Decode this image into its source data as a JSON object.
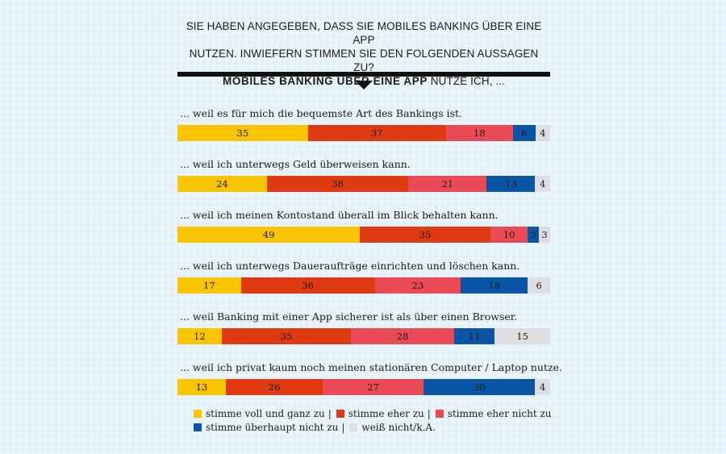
{
  "title": {
    "line1": "SIE HABEN ANGEGEBEN, DASS SIE MOBILES BANKING ÜBER EINE APP",
    "line2": "NUTZEN. INWIEFERN STIMMEN SIE DEN FOLGENDEN AUSSAGEN ZU?",
    "line3_bold": "MOBILES BANKING ÜBER EINE APP",
    "line3_rest": " NUTZE ICH, ..."
  },
  "chart_data": {
    "type": "bar",
    "orientation": "horizontal",
    "stacked": true,
    "categories": [
      "... weil es für mich die bequemste Art des Bankings ist.",
      "... weil ich unterwegs Geld überweisen kann.",
      "... weil ich meinen Kontostand überall im Blick behalten kann.",
      "... weil ich unterwegs Daueraufträge einrichten und löschen kann.",
      "... weil Banking mit einer App sicherer ist als über einen Browser.",
      "... weil ich privat kaum noch meinen stationären Computer / Laptop nutze."
    ],
    "series": [
      {
        "name": "stimme voll und ganz zu",
        "color": "#f9c400",
        "values": [
          35,
          24,
          49,
          17,
          12,
          13
        ]
      },
      {
        "name": "stimme eher zu",
        "color": "#e03a12",
        "values": [
          37,
          38,
          35,
          36,
          35,
          26
        ]
      },
      {
        "name": "stimme eher nicht zu",
        "color": "#ea4a55",
        "values": [
          18,
          21,
          10,
          23,
          28,
          27
        ]
      },
      {
        "name": "stimme überhaupt nicht zu",
        "color": "#0b55a6",
        "values": [
          6,
          13,
          3,
          18,
          11,
          30
        ]
      },
      {
        "name": "weiß nicht/k.A.",
        "color": "#dcdee1",
        "values": [
          4,
          4,
          3,
          6,
          15,
          4
        ]
      }
    ],
    "legend_position": "bottom",
    "legend_separator": "|"
  }
}
